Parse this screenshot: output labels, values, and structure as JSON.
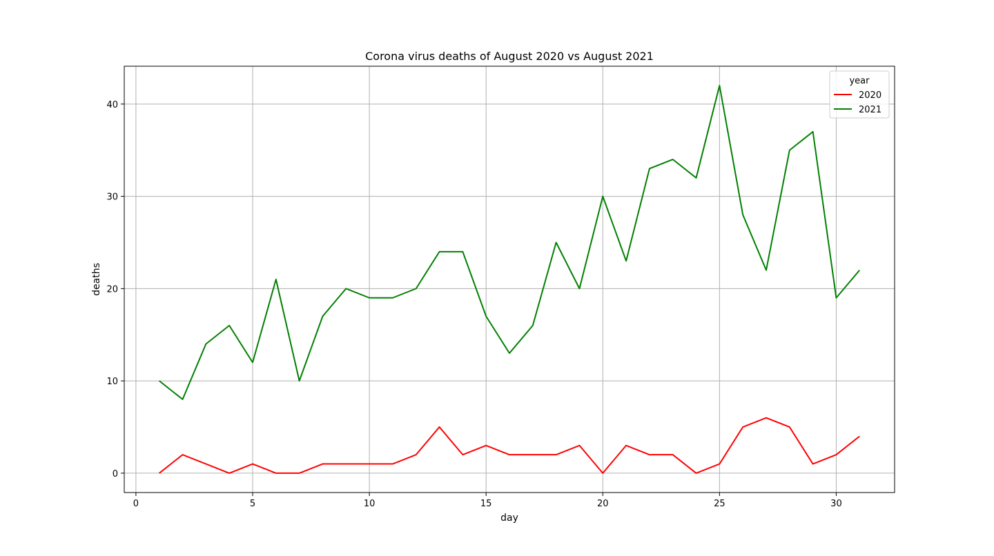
{
  "chart_data": {
    "type": "line",
    "title": "Corona virus deaths of August 2020 vs August 2021",
    "xlabel": "day",
    "ylabel": "deaths",
    "xlim": [
      -0.5,
      32.5
    ],
    "ylim": [
      -2.1,
      44.1
    ],
    "xticks": [
      0,
      5,
      10,
      15,
      20,
      25,
      30
    ],
    "yticks": [
      0,
      10,
      20,
      30,
      40
    ],
    "grid": true,
    "legend": {
      "title": "year",
      "placement": "top-right"
    },
    "x": [
      1,
      2,
      3,
      4,
      5,
      6,
      7,
      8,
      9,
      10,
      11,
      12,
      13,
      14,
      15,
      16,
      17,
      18,
      19,
      20,
      21,
      22,
      23,
      24,
      25,
      26,
      27,
      28,
      29,
      30,
      31
    ],
    "series": [
      {
        "name": "2020",
        "color": "#ff0000",
        "values": [
          0,
          2,
          1,
          0,
          1,
          0,
          0,
          1,
          1,
          1,
          1,
          2,
          5,
          2,
          3,
          2,
          2,
          2,
          3,
          0,
          3,
          2,
          2,
          0,
          1,
          5,
          6,
          5,
          1,
          2,
          4
        ]
      },
      {
        "name": "2021",
        "color": "#008000",
        "values": [
          10,
          8,
          14,
          16,
          12,
          21,
          10,
          17,
          20,
          19,
          19,
          20,
          24,
          24,
          17,
          13,
          16,
          25,
          20,
          30,
          23,
          33,
          34,
          32,
          42,
          28,
          22,
          35,
          37,
          19,
          22
        ]
      }
    ]
  }
}
